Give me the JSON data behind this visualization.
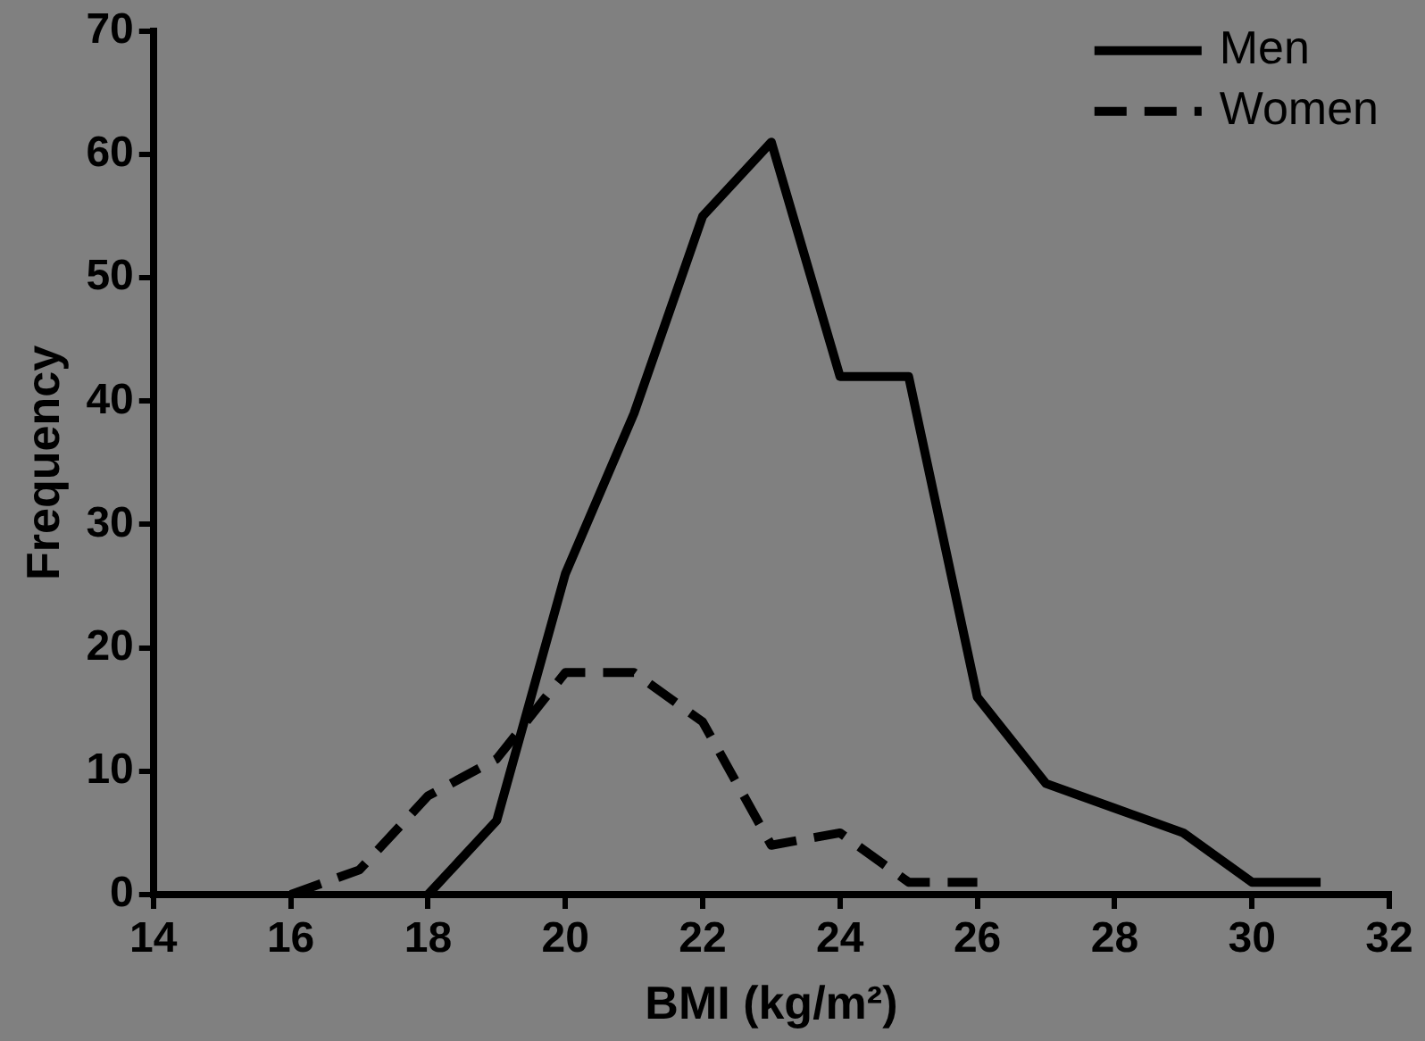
{
  "chart_data": {
    "type": "line",
    "xlabel": "BMI (kg/m²)",
    "ylabel": "Frequency",
    "xlim": [
      14,
      32
    ],
    "xticks": [
      14,
      16,
      18,
      20,
      22,
      24,
      26,
      28,
      30,
      32
    ],
    "ylim": [
      0,
      70
    ],
    "yticks": [
      0,
      10,
      20,
      30,
      40,
      50,
      60,
      70
    ],
    "legend": "top right",
    "grid": false,
    "marker": "none",
    "series": [
      {
        "name": "Men",
        "color": "#000000",
        "line_style": "solid",
        "x": [
          18,
          19,
          20,
          21,
          22,
          23,
          24,
          25,
          26,
          27,
          28,
          29,
          30,
          31
        ],
        "values": [
          0,
          6,
          26,
          39,
          55,
          61,
          42,
          42,
          16,
          9,
          7,
          5,
          1,
          1
        ]
      },
      {
        "name": "Women",
        "color": "#000000",
        "line_style": "dashed",
        "x": [
          16,
          17,
          18,
          19,
          20,
          21,
          22,
          23,
          24,
          25,
          26
        ],
        "values": [
          0,
          2,
          8,
          11,
          18,
          18,
          14,
          4,
          5,
          1,
          1
        ]
      }
    ]
  }
}
